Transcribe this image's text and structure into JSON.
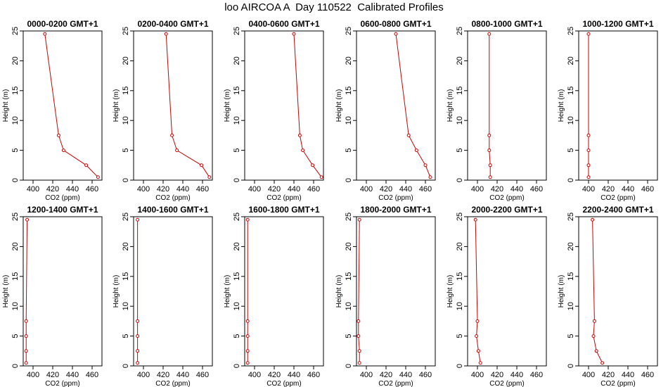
{
  "title": "loo AIRCOA A  Day 110522  Calibrated Profiles",
  "colors": {
    "series": "#cc0000",
    "axis": "#000000"
  },
  "chart_data": [
    {
      "type": "line",
      "title": "0000-0200 GMT+1",
      "xlabel": "CO2 (ppm)",
      "ylabel": "Height (m)",
      "xlim": [
        390,
        470
      ],
      "ylim": [
        0,
        25
      ],
      "xticks": [
        400,
        420,
        440,
        460
      ],
      "yticks": [
        0,
        5,
        10,
        15,
        20,
        25
      ],
      "grid": false,
      "series": [
        {
          "x": [
            412,
            426,
            431,
            454,
            466
          ],
          "y": [
            24.5,
            7.5,
            5,
            2.5,
            0.5
          ]
        }
      ]
    },
    {
      "type": "line",
      "title": "0200-0400 GMT+1",
      "xlabel": "CO2 (ppm)",
      "ylabel": "Height (m)",
      "xlim": [
        390,
        470
      ],
      "ylim": [
        0,
        25
      ],
      "xticks": [
        400,
        420,
        440,
        460
      ],
      "yticks": [
        0,
        5,
        10,
        15,
        20,
        25
      ],
      "grid": false,
      "series": [
        {
          "x": [
            423,
            429,
            434,
            459,
            467
          ],
          "y": [
            24.5,
            7.5,
            5,
            2.5,
            0.5
          ]
        }
      ]
    },
    {
      "type": "line",
      "title": "0400-0600 GMT+1",
      "xlabel": "CO2 (ppm)",
      "ylabel": "Height (m)",
      "xlim": [
        390,
        470
      ],
      "ylim": [
        0,
        25
      ],
      "xticks": [
        400,
        420,
        440,
        460
      ],
      "yticks": [
        0,
        5,
        10,
        15,
        20,
        25
      ],
      "grid": false,
      "series": [
        {
          "x": [
            440,
            446,
            449,
            459,
            468
          ],
          "y": [
            24.5,
            7.5,
            5,
            2.5,
            0.5
          ]
        }
      ]
    },
    {
      "type": "line",
      "title": "0600-0800 GMT+1",
      "xlabel": "CO2 (ppm)",
      "ylabel": "Height (m)",
      "xlim": [
        390,
        470
      ],
      "ylim": [
        0,
        25
      ],
      "xticks": [
        400,
        420,
        440,
        460
      ],
      "yticks": [
        0,
        5,
        10,
        15,
        20,
        25
      ],
      "grid": false,
      "series": [
        {
          "x": [
            430,
            443,
            451,
            460,
            465
          ],
          "y": [
            24.5,
            7.5,
            5,
            2.5,
            0.5
          ]
        }
      ]
    },
    {
      "type": "line",
      "title": "0800-1000 GMT+1",
      "xlabel": "CO2 (ppm)",
      "ylabel": "Height (m)",
      "xlim": [
        390,
        470
      ],
      "ylim": [
        0,
        25
      ],
      "xticks": [
        400,
        420,
        440,
        460
      ],
      "yticks": [
        0,
        5,
        10,
        15,
        20,
        25
      ],
      "grid": false,
      "series": [
        {
          "x": [
            412,
            412,
            412,
            413,
            413
          ],
          "y": [
            24.5,
            7.5,
            5,
            2.5,
            0.5
          ]
        }
      ]
    },
    {
      "type": "line",
      "title": "1000-1200 GMT+1",
      "xlabel": "CO2 (ppm)",
      "ylabel": "Height (m)",
      "xlim": [
        390,
        470
      ],
      "ylim": [
        0,
        25
      ],
      "xticks": [
        400,
        420,
        440,
        460
      ],
      "yticks": [
        0,
        5,
        10,
        15,
        20,
        25
      ],
      "grid": false,
      "series": [
        {
          "x": [
            400,
            400,
            400,
            400,
            400
          ],
          "y": [
            24.5,
            7.5,
            5,
            2.5,
            0.5
          ]
        }
      ]
    },
    {
      "type": "line",
      "title": "1200-1400 GMT+1",
      "xlabel": "CO2 (ppm)",
      "ylabel": "Height (m)",
      "xlim": [
        390,
        470
      ],
      "ylim": [
        0,
        25
      ],
      "xticks": [
        400,
        420,
        440,
        460
      ],
      "yticks": [
        0,
        5,
        10,
        15,
        20,
        25
      ],
      "grid": false,
      "series": [
        {
          "x": [
            394,
            393,
            393,
            393,
            393
          ],
          "y": [
            24.5,
            7.5,
            5,
            2.5,
            0.5
          ]
        }
      ]
    },
    {
      "type": "line",
      "title": "1400-1600 GMT+1",
      "xlabel": "CO2 (ppm)",
      "ylabel": "Height (m)",
      "xlim": [
        390,
        470
      ],
      "ylim": [
        0,
        25
      ],
      "xticks": [
        400,
        420,
        440,
        460
      ],
      "yticks": [
        0,
        5,
        10,
        15,
        20,
        25
      ],
      "grid": false,
      "series": [
        {
          "x": [
            394,
            394,
            394,
            394,
            394
          ],
          "y": [
            24.5,
            7.5,
            5,
            2.5,
            0.5
          ]
        }
      ]
    },
    {
      "type": "line",
      "title": "1600-1800 GMT+1",
      "xlabel": "CO2 (ppm)",
      "ylabel": "Height (m)",
      "xlim": [
        390,
        470
      ],
      "ylim": [
        0,
        25
      ],
      "xticks": [
        400,
        420,
        440,
        460
      ],
      "yticks": [
        0,
        5,
        10,
        15,
        20,
        25
      ],
      "grid": false,
      "series": [
        {
          "x": [
            393,
            393,
            393,
            393,
            393
          ],
          "y": [
            24.5,
            7.5,
            5,
            2.5,
            0.5
          ]
        }
      ]
    },
    {
      "type": "line",
      "title": "1800-2000 GMT+1",
      "xlabel": "CO2 (ppm)",
      "ylabel": "Height (m)",
      "xlim": [
        390,
        470
      ],
      "ylim": [
        0,
        25
      ],
      "xticks": [
        400,
        420,
        440,
        460
      ],
      "yticks": [
        0,
        5,
        10,
        15,
        20,
        25
      ],
      "grid": false,
      "series": [
        {
          "x": [
            393,
            392,
            392,
            393,
            393
          ],
          "y": [
            24.5,
            7.5,
            5,
            2.5,
            0.5
          ]
        }
      ]
    },
    {
      "type": "line",
      "title": "2000-2200 GMT+1",
      "xlabel": "CO2 (ppm)",
      "ylabel": "Height (m)",
      "xlim": [
        390,
        470
      ],
      "ylim": [
        0,
        25
      ],
      "xticks": [
        400,
        420,
        440,
        460
      ],
      "yticks": [
        0,
        5,
        10,
        15,
        20,
        25
      ],
      "grid": false,
      "series": [
        {
          "x": [
            398,
            400,
            399,
            401,
            403
          ],
          "y": [
            24.5,
            7.5,
            5,
            2.5,
            0.5
          ]
        }
      ]
    },
    {
      "type": "line",
      "title": "2200-2400 GMT+1",
      "xlabel": "CO2 (ppm)",
      "ylabel": "Height (m)",
      "xlim": [
        390,
        470
      ],
      "ylim": [
        0,
        25
      ],
      "xticks": [
        400,
        420,
        440,
        460
      ],
      "yticks": [
        0,
        5,
        10,
        15,
        20,
        25
      ],
      "grid": false,
      "series": [
        {
          "x": [
            404,
            406,
            405,
            408,
            414
          ],
          "y": [
            24.5,
            7.5,
            5,
            2.5,
            0.5
          ]
        }
      ]
    }
  ]
}
